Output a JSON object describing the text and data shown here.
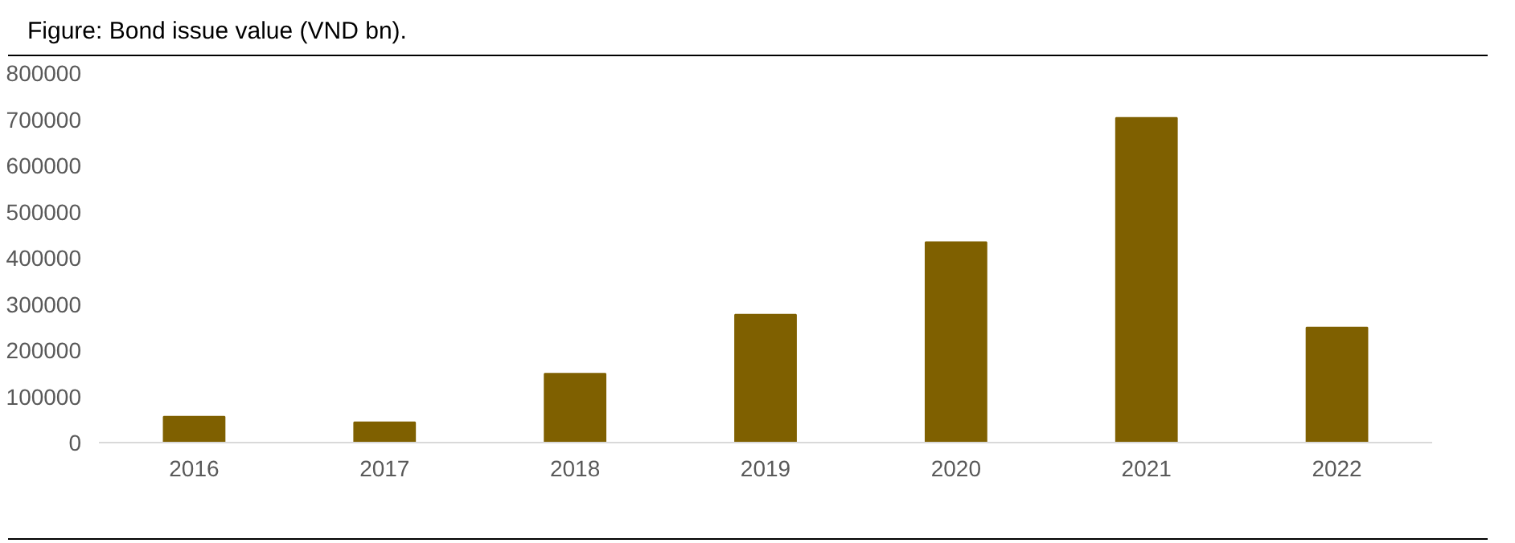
{
  "chart_data": {
    "type": "bar",
    "title": "Figure: Bond issue value (VND bn).",
    "categories": [
      "2016",
      "2017",
      "2018",
      "2019",
      "2020",
      "2021",
      "2022"
    ],
    "values": [
      56000,
      44000,
      149000,
      277000,
      434000,
      703000,
      249000
    ],
    "color": "#7f6000",
    "ylim": [
      0,
      800000
    ],
    "yticks": [
      0,
      100000,
      200000,
      300000,
      400000,
      500000,
      600000,
      700000,
      800000
    ],
    "grid": false
  }
}
